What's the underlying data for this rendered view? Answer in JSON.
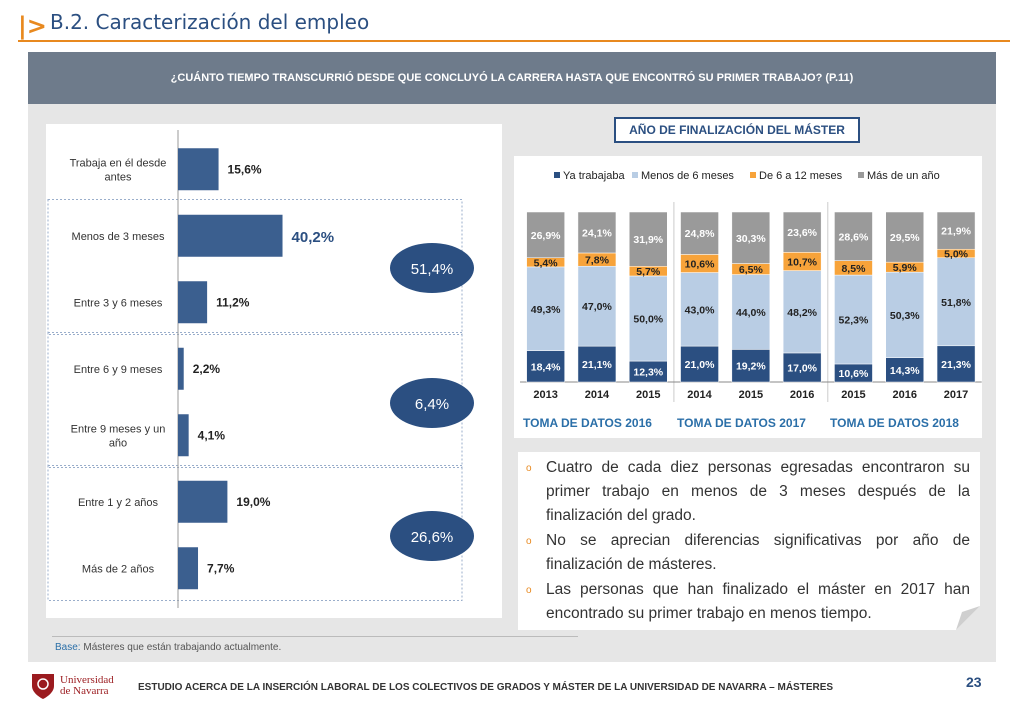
{
  "header": {
    "mark": "|>",
    "title": "B.2. Caracterización del empleo"
  },
  "question": "¿CUÁNTO TIEMPO TRANSCURRIÓ DESDE QUE CONCLUYÓ LA CARRERA HASTA QUE ENCONTRÓ SU PRIMER TRABAJO? (P.11)",
  "chart_data": [
    {
      "type": "bar",
      "orientation": "horizontal",
      "categories": [
        "Trabaja en él desde antes",
        "Menos de 3 meses",
        "Entre 3 y 6 meses",
        "Entre 6 y 9 meses",
        "Entre 9 meses y un año",
        "Entre 1 y 2 años",
        "Más de 2 años"
      ],
      "values": [
        15.6,
        40.2,
        11.2,
        2.2,
        4.1,
        19.0,
        7.7
      ],
      "labels": [
        "15,6%",
        "40,2%",
        "11,2%",
        "2,2%",
        "4,1%",
        "19,0%",
        "7,7%"
      ],
      "groups": [
        {
          "label": "51,4%",
          "rows": [
            1,
            2
          ]
        },
        {
          "label": "6,4%",
          "rows": [
            3,
            4
          ]
        },
        {
          "label": "26,6%",
          "rows": [
            5,
            6
          ]
        }
      ]
    },
    {
      "type": "bar",
      "stacked": true,
      "title": "AÑO DE FINALIZACIÓN DEL MÁSTER",
      "categories": [
        "2013",
        "2014",
        "2015",
        "2014",
        "2015",
        "2016",
        "2015",
        "2016",
        "2017"
      ],
      "category_groups": [
        {
          "label": "TOMA DE DATOS 2016",
          "start": 0,
          "end": 2
        },
        {
          "label": "TOMA DE DATOS 2017",
          "start": 3,
          "end": 5
        },
        {
          "label": "TOMA DE DATOS 2018",
          "start": 6,
          "end": 8
        }
      ],
      "legend_position": "top",
      "series": [
        {
          "name": "Ya trabajaba",
          "color": "#2b4f81",
          "values": [
            18.4,
            21.1,
            12.3,
            21.0,
            19.2,
            17.0,
            10.6,
            14.3,
            21.3
          ],
          "labels": [
            "18,4%",
            "21,1%",
            "12,3%",
            "21,0%",
            "19,2%",
            "17,0%",
            "10,6%",
            "14,3%",
            "21,3%"
          ]
        },
        {
          "name": "Menos de 6 meses",
          "color": "#b9cde4",
          "values": [
            49.3,
            47.0,
            50.0,
            43.0,
            44.0,
            48.2,
            52.3,
            50.3,
            51.8
          ],
          "labels": [
            "49,3%",
            "47,0%",
            "50,0%",
            "43,0%",
            "44,0%",
            "48,2%",
            "52,3%",
            "50,3%",
            "51,8%"
          ]
        },
        {
          "name": "De 6 a 12 meses",
          "color": "#f7a33a",
          "values": [
            5.4,
            7.8,
            5.7,
            10.6,
            6.5,
            10.7,
            8.5,
            5.9,
            5.0
          ],
          "labels": [
            "5,4%",
            "7,8%",
            "5,7%",
            "10,6%",
            "6,5%",
            "10,7%",
            "8,5%",
            "5,9%",
            "5,0%"
          ]
        },
        {
          "name": "Más de un año",
          "color": "#9a9a9a",
          "values": [
            26.9,
            24.1,
            31.9,
            24.8,
            30.3,
            23.6,
            28.6,
            29.5,
            21.9
          ],
          "labels": [
            "26,9%",
            "24,1%",
            "31,9%",
            "24,8%",
            "30,3%",
            "23,6%",
            "28,6%",
            "29,5%",
            "21,9%"
          ]
        }
      ]
    }
  ],
  "bullets": [
    "Cuatro de cada diez personas egresadas encontraron su primer trabajo en menos de 3 meses después de la finalización del grado.",
    "No se aprecian diferencias significativas por año de finalización de másteres.",
    "Las personas que han finalizado el máster en 2017 han encontrado su primer trabajo en menos tiempo."
  ],
  "base": {
    "label": "Base:",
    "text": "Másteres que están trabajando actualmente."
  },
  "footer": {
    "logo_line1": "Universidad",
    "logo_line2": "de Navarra",
    "text": "ESTUDIO ACERCA DE LA INSERCIÓN LABORAL DE LOS COLECTIVOS DE GRADOS Y MÁSTER DE LA UNIVERSIDAD DE NAVARRA – MÁSTERES",
    "page": "23"
  },
  "colors": {
    "accent": "#e8891f",
    "navy": "#2b4f81",
    "bar_left": "#3b5f8f"
  }
}
